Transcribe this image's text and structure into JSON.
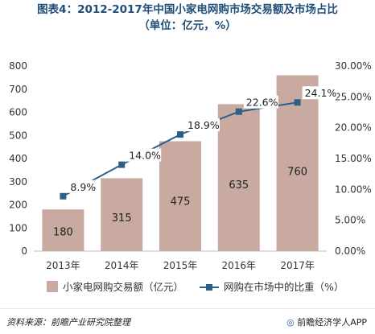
{
  "title": {
    "line1": "图表4：2012-2017年中国小家电网购市场交易额及市场占比",
    "line2": "（单位：亿元，%）"
  },
  "chart_data": {
    "type": "bar+line",
    "categories": [
      "2013年",
      "2014年",
      "2015年",
      "2016年",
      "2017年"
    ],
    "series": [
      {
        "name": "小家电网购交易额（亿元）",
        "type": "bar",
        "axis": "left",
        "values": [
          180,
          315,
          475,
          635,
          760
        ],
        "color": "#c8aaa0"
      },
      {
        "name": "网购在市场中的比重（%）",
        "type": "line",
        "axis": "right",
        "values": [
          8.9,
          14.0,
          18.9,
          22.6,
          24.1
        ],
        "labels": [
          "8.9%",
          "14.0%",
          "18.9%",
          "22.6%",
          "24.1%"
        ],
        "color": "#2e5f87"
      }
    ],
    "y_left": {
      "ylim": [
        0,
        800
      ],
      "ticks": [
        "0",
        "100",
        "200",
        "300",
        "400",
        "500",
        "600",
        "700",
        "800"
      ]
    },
    "y_right": {
      "ylim": [
        0,
        30
      ],
      "ticks": [
        "0.00%",
        "5.00%",
        "10.00%",
        "15.00%",
        "20.00%",
        "25.00%",
        "30.00%"
      ]
    },
    "grid": false,
    "legend": "bottom"
  },
  "footer": {
    "source": "资料来源：前瞻产业研究院整理",
    "brand_logo": "◎",
    "brand_text": "前瞻经济学人APP"
  }
}
